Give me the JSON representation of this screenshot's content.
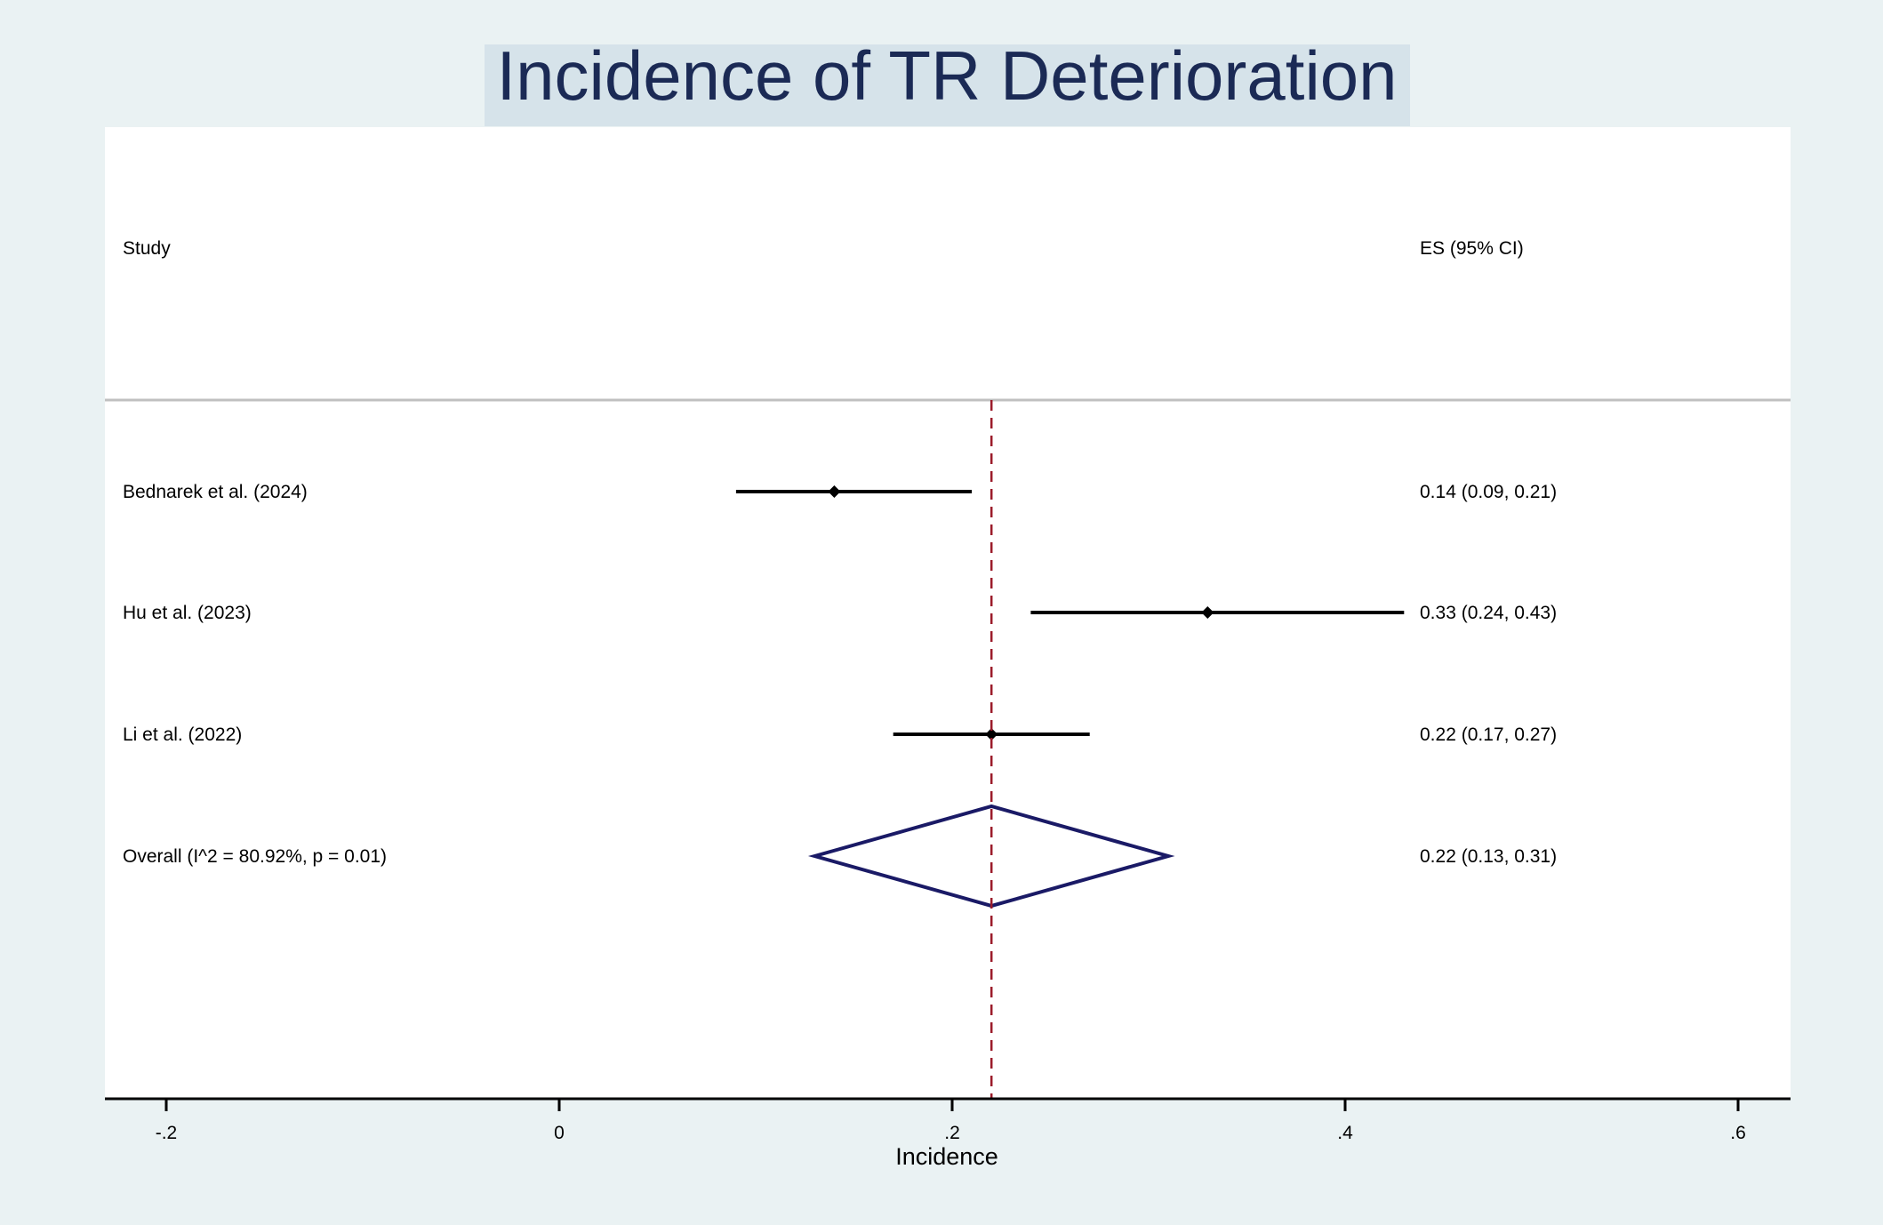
{
  "chart_data": {
    "type": "forest",
    "title": "Incidence of TR Deterioration",
    "xlabel": "Incidence",
    "xlim": [
      -0.2,
      0.6
    ],
    "xticks": [
      -0.2,
      0,
      0.2,
      0.4,
      0.6
    ],
    "xtick_labels": [
      "-.2",
      "0",
      ".2",
      ".4",
      ".6"
    ],
    "header": {
      "study": "Study",
      "es": "ES (95% CI)"
    },
    "studies": [
      {
        "label": "Bednarek et al. (2024)",
        "es": 0.14,
        "lower": 0.09,
        "upper": 0.21,
        "text": "0.14 (0.09, 0.21)"
      },
      {
        "label": "Hu et al. (2023)",
        "es": 0.33,
        "lower": 0.24,
        "upper": 0.43,
        "text": "0.33 (0.24, 0.43)"
      },
      {
        "label": "Li et al. (2022)",
        "es": 0.22,
        "lower": 0.17,
        "upper": 0.27,
        "text": "0.22 (0.17, 0.27)"
      }
    ],
    "overall": {
      "label": "Overall  (I^2 = 80.92%, p = 0.01)",
      "es": 0.22,
      "lower": 0.13,
      "upper": 0.31,
      "text": "0.22 (0.13, 0.31)"
    },
    "reference_line": 0.22,
    "colors": {
      "background": "#eaf2f3",
      "title_band": "#d6e3ea",
      "title_text": "#1b2a55",
      "plot_bg": "#ffffff",
      "point": "#000000",
      "diamond": "#1a1a66",
      "ref_line": "#9b1b2a"
    }
  }
}
